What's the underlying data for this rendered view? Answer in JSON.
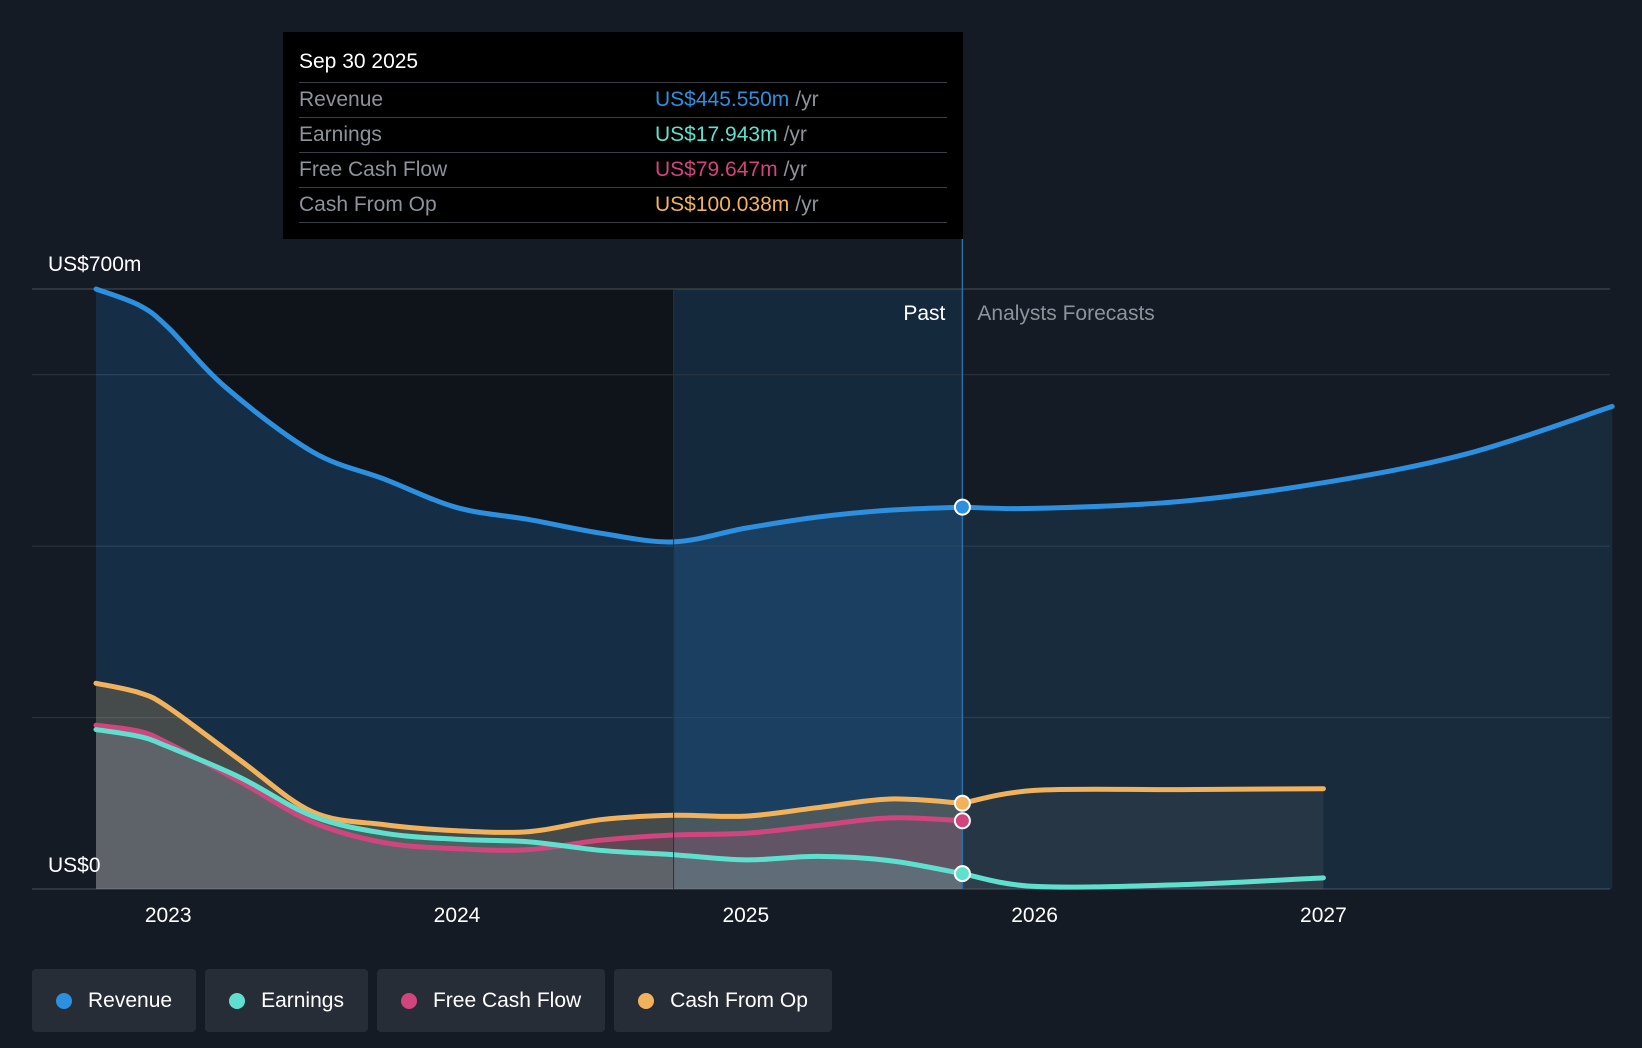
{
  "tooltip": {
    "date": "Sep 30 2025",
    "rows": [
      {
        "label": "Revenue",
        "value": "US$445.550m",
        "unit": "/yr"
      },
      {
        "label": "Earnings",
        "value": "US$17.943m",
        "unit": "/yr"
      },
      {
        "label": "Free Cash Flow",
        "value": "US$79.647m",
        "unit": "/yr"
      },
      {
        "label": "Cash From Op",
        "value": "US$100.038m",
        "unit": "/yr"
      }
    ]
  },
  "colors": {
    "revenue": "#2d8fdf",
    "earnings": "#5fe0cf",
    "fcf": "#d0457d",
    "cfo": "#f2b25c",
    "background": "#151b24"
  },
  "legend": [
    {
      "label": "Revenue",
      "color": "#2d8fdf"
    },
    {
      "label": "Earnings",
      "color": "#5fe0cf"
    },
    {
      "label": "Free Cash Flow",
      "color": "#d0457d"
    },
    {
      "label": "Cash From Op",
      "color": "#f2b25c"
    }
  ],
  "chart_data": {
    "type": "area",
    "title": "",
    "xlabel": "",
    "ylabel": "",
    "ylim": [
      0,
      700
    ],
    "xlim": [
      2022.75,
      2028.0
    ],
    "y_tick_labels": [
      {
        "value": 700,
        "label": "US$700m"
      },
      {
        "value": 0,
        "label": "US$0"
      }
    ],
    "x_ticks": [
      {
        "value": 2023,
        "label": "2023"
      },
      {
        "value": 2024,
        "label": "2024"
      },
      {
        "value": 2025,
        "label": "2025"
      },
      {
        "value": 2026,
        "label": "2026"
      },
      {
        "value": 2027,
        "label": "2027"
      }
    ],
    "gridlines": [
      700,
      600,
      400,
      200,
      0
    ],
    "past_label": "Past",
    "forecast_label": "Analysts Forecasts",
    "past_end": 2025.75,
    "highlight_start": 2024.75,
    "series": [
      {
        "name": "Revenue",
        "key": "revenue",
        "past": [
          [
            2022.75,
            700
          ],
          [
            2022.9,
            681
          ],
          [
            2023.0,
            655
          ],
          [
            2023.2,
            585
          ],
          [
            2023.5,
            510
          ],
          [
            2023.75,
            478
          ],
          [
            2024.0,
            445
          ],
          [
            2024.25,
            431
          ],
          [
            2024.5,
            415
          ],
          [
            2024.75,
            405
          ],
          [
            2025.0,
            421
          ],
          [
            2025.25,
            434
          ],
          [
            2025.5,
            442
          ],
          [
            2025.75,
            445.55
          ]
        ],
        "forecast": [
          [
            2026.0,
            444
          ],
          [
            2026.5,
            452
          ],
          [
            2027.0,
            474
          ],
          [
            2027.5,
            508
          ],
          [
            2028.0,
            563
          ]
        ]
      },
      {
        "name": "Earnings",
        "key": "earnings",
        "past": [
          [
            2022.75,
            186
          ],
          [
            2022.9,
            178
          ],
          [
            2023.0,
            166
          ],
          [
            2023.25,
            130
          ],
          [
            2023.5,
            85
          ],
          [
            2023.75,
            65
          ],
          [
            2024.0,
            58
          ],
          [
            2024.25,
            55
          ],
          [
            2024.5,
            45
          ],
          [
            2024.75,
            40
          ],
          [
            2025.0,
            34
          ],
          [
            2025.25,
            38
          ],
          [
            2025.5,
            33
          ],
          [
            2025.75,
            17.943
          ]
        ],
        "forecast": [
          [
            2026.0,
            3
          ],
          [
            2026.5,
            5
          ],
          [
            2027.0,
            13
          ]
        ]
      },
      {
        "name": "Free Cash Flow",
        "key": "fcf",
        "past": [
          [
            2022.75,
            191
          ],
          [
            2022.9,
            184
          ],
          [
            2023.0,
            170
          ],
          [
            2023.25,
            125
          ],
          [
            2023.5,
            78
          ],
          [
            2023.75,
            54
          ],
          [
            2024.0,
            47
          ],
          [
            2024.25,
            46
          ],
          [
            2024.5,
            57
          ],
          [
            2024.75,
            63
          ],
          [
            2025.0,
            65
          ],
          [
            2025.25,
            74
          ],
          [
            2025.5,
            83
          ],
          [
            2025.75,
            79.647
          ]
        ],
        "forecast": []
      },
      {
        "name": "Cash From Op",
        "key": "cfo",
        "past": [
          [
            2022.75,
            240
          ],
          [
            2022.9,
            229
          ],
          [
            2023.0,
            212
          ],
          [
            2023.25,
            150
          ],
          [
            2023.5,
            90
          ],
          [
            2023.75,
            75
          ],
          [
            2024.0,
            68
          ],
          [
            2024.25,
            67
          ],
          [
            2024.5,
            81
          ],
          [
            2024.75,
            86
          ],
          [
            2025.0,
            85
          ],
          [
            2025.25,
            95
          ],
          [
            2025.5,
            105
          ],
          [
            2025.75,
            100.038
          ]
        ],
        "forecast": [
          [
            2026.0,
            115
          ],
          [
            2026.5,
            116
          ],
          [
            2027.0,
            117
          ]
        ]
      }
    ]
  }
}
